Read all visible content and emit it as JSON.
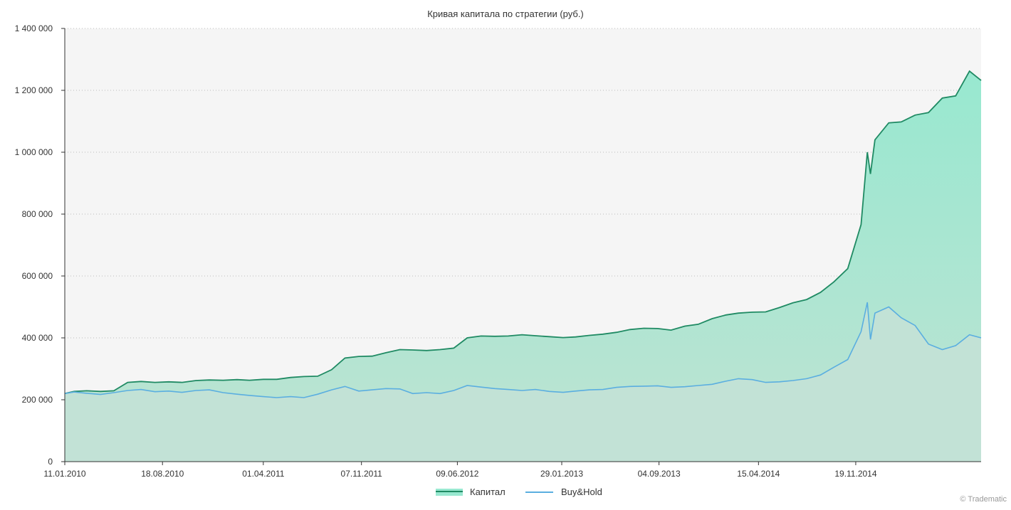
{
  "colors": {
    "plot_background": "#f5f5f5",
    "capital_line": "#1f8a63",
    "capital_fill_top": "#98e8d0",
    "capital_fill_bottom": "#bfe3d3",
    "buyhold_line": "#5aaee0",
    "buyhold_fill": "#c2e2d6",
    "grid": "#bbbbbb",
    "text": "#333333"
  },
  "watermark": "© Tradematic",
  "chart_data": {
    "type": "area",
    "title": "Кривая капитала по стратегии (руб.)",
    "xlabel": "",
    "ylabel": "",
    "x_range": [
      "11.01.2010",
      "27.08.2015"
    ],
    "ylim": [
      0,
      1400000
    ],
    "y_ticks": [
      0,
      200000,
      400000,
      600000,
      800000,
      1000000,
      1200000,
      1400000
    ],
    "y_tick_labels": [
      "0",
      "200 000",
      "400 000",
      "600 000",
      "800 000",
      "1 000 000",
      "1 200 000",
      "1 400 000"
    ],
    "x_ticks": [
      "11.01.2010",
      "18.08.2010",
      "01.04.2011",
      "07.11.2011",
      "09.06.2012",
      "29.01.2013",
      "04.09.2013",
      "15.04.2014",
      "19.11.2014"
    ],
    "grid": "horizontal dotted",
    "legend_position": "bottom-center",
    "series": [
      {
        "name": "Капитал",
        "points": [
          [
            "11.01.2010",
            220000
          ],
          [
            "01.02.2010",
            227000
          ],
          [
            "01.03.2010",
            229000
          ],
          [
            "01.04.2010",
            227000
          ],
          [
            "01.05.2010",
            229000
          ],
          [
            "01.06.2010",
            256000
          ],
          [
            "01.07.2010",
            259000
          ],
          [
            "01.08.2010",
            256000
          ],
          [
            "01.09.2010",
            258000
          ],
          [
            "01.10.2010",
            256000
          ],
          [
            "01.11.2010",
            262000
          ],
          [
            "01.12.2010",
            264000
          ],
          [
            "01.01.2011",
            263000
          ],
          [
            "01.02.2011",
            265000
          ],
          [
            "01.03.2011",
            263000
          ],
          [
            "01.04.2011",
            266000
          ],
          [
            "01.05.2011",
            266000
          ],
          [
            "01.06.2011",
            272000
          ],
          [
            "01.07.2011",
            275000
          ],
          [
            "01.08.2011",
            276000
          ],
          [
            "01.09.2011",
            297000
          ],
          [
            "01.10.2011",
            335000
          ],
          [
            "01.11.2011",
            340000
          ],
          [
            "01.12.2011",
            341000
          ],
          [
            "01.01.2012",
            352000
          ],
          [
            "01.02.2012",
            362000
          ],
          [
            "01.03.2012",
            361000
          ],
          [
            "01.04.2012",
            359000
          ],
          [
            "01.05.2012",
            362000
          ],
          [
            "01.06.2012",
            367000
          ],
          [
            "01.07.2012",
            400000
          ],
          [
            "01.08.2012",
            406000
          ],
          [
            "01.09.2012",
            405000
          ],
          [
            "01.10.2012",
            406000
          ],
          [
            "01.11.2012",
            410000
          ],
          [
            "01.12.2012",
            407000
          ],
          [
            "01.01.2013",
            404000
          ],
          [
            "01.02.2013",
            401000
          ],
          [
            "01.03.2013",
            403000
          ],
          [
            "01.04.2013",
            408000
          ],
          [
            "01.05.2013",
            412000
          ],
          [
            "01.06.2013",
            418000
          ],
          [
            "01.07.2013",
            427000
          ],
          [
            "01.08.2013",
            431000
          ],
          [
            "01.09.2013",
            430000
          ],
          [
            "01.10.2013",
            425000
          ],
          [
            "01.11.2013",
            438000
          ],
          [
            "01.12.2013",
            444000
          ],
          [
            "01.01.2014",
            462000
          ],
          [
            "01.02.2014",
            474000
          ],
          [
            "01.03.2014",
            480000
          ],
          [
            "01.04.2014",
            483000
          ],
          [
            "01.05.2014",
            484000
          ],
          [
            "01.06.2014",
            498000
          ],
          [
            "01.07.2014",
            513000
          ],
          [
            "01.08.2014",
            524000
          ],
          [
            "01.09.2014",
            547000
          ],
          [
            "01.10.2014",
            581000
          ],
          [
            "01.11.2014",
            624000
          ],
          [
            "01.12.2014",
            766000
          ],
          [
            "15.12.2014",
            1000000
          ],
          [
            "22.12.2014",
            930000
          ],
          [
            "01.01.2015",
            1040000
          ],
          [
            "01.02.2015",
            1095000
          ],
          [
            "01.03.2015",
            1098000
          ],
          [
            "01.04.2015",
            1120000
          ],
          [
            "01.05.2015",
            1128000
          ],
          [
            "01.06.2015",
            1175000
          ],
          [
            "01.07.2015",
            1182000
          ],
          [
            "01.08.2015",
            1262000
          ],
          [
            "27.08.2015",
            1232000
          ]
        ]
      },
      {
        "name": "Buy&Hold",
        "points": [
          [
            "11.01.2010",
            220000
          ],
          [
            "01.02.2010",
            225000
          ],
          [
            "01.03.2010",
            221000
          ],
          [
            "01.04.2010",
            217000
          ],
          [
            "01.05.2010",
            223000
          ],
          [
            "01.06.2010",
            230000
          ],
          [
            "01.07.2010",
            233000
          ],
          [
            "01.08.2010",
            226000
          ],
          [
            "01.09.2010",
            228000
          ],
          [
            "01.10.2010",
            224000
          ],
          [
            "01.11.2010",
            230000
          ],
          [
            "01.12.2010",
            232000
          ],
          [
            "01.01.2011",
            223000
          ],
          [
            "01.02.2011",
            218000
          ],
          [
            "01.03.2011",
            214000
          ],
          [
            "01.04.2011",
            210000
          ],
          [
            "01.05.2011",
            207000
          ],
          [
            "01.06.2011",
            210000
          ],
          [
            "01.07.2011",
            207000
          ],
          [
            "01.08.2011",
            218000
          ],
          [
            "01.09.2011",
            232000
          ],
          [
            "01.10.2011",
            243000
          ],
          [
            "01.11.2011",
            228000
          ],
          [
            "01.12.2011",
            232000
          ],
          [
            "01.01.2012",
            236000
          ],
          [
            "01.02.2012",
            235000
          ],
          [
            "01.03.2012",
            220000
          ],
          [
            "01.04.2012",
            223000
          ],
          [
            "01.05.2012",
            220000
          ],
          [
            "01.06.2012",
            230000
          ],
          [
            "01.07.2012",
            246000
          ],
          [
            "01.08.2012",
            241000
          ],
          [
            "01.09.2012",
            236000
          ],
          [
            "01.10.2012",
            233000
          ],
          [
            "01.11.2012",
            230000
          ],
          [
            "01.12.2012",
            233000
          ],
          [
            "01.01.2013",
            227000
          ],
          [
            "01.02.2013",
            224000
          ],
          [
            "01.03.2013",
            228000
          ],
          [
            "01.04.2013",
            232000
          ],
          [
            "01.05.2013",
            233000
          ],
          [
            "01.06.2013",
            240000
          ],
          [
            "01.07.2013",
            243000
          ],
          [
            "01.08.2013",
            244000
          ],
          [
            "01.09.2013",
            245000
          ],
          [
            "01.10.2013",
            240000
          ],
          [
            "01.11.2013",
            242000
          ],
          [
            "01.12.2013",
            246000
          ],
          [
            "01.01.2014",
            250000
          ],
          [
            "01.02.2014",
            260000
          ],
          [
            "01.03.2014",
            268000
          ],
          [
            "01.04.2014",
            265000
          ],
          [
            "01.05.2014",
            256000
          ],
          [
            "01.06.2014",
            258000
          ],
          [
            "01.07.2014",
            262000
          ],
          [
            "01.08.2014",
            268000
          ],
          [
            "01.09.2014",
            280000
          ],
          [
            "01.10.2014",
            305000
          ],
          [
            "01.11.2014",
            330000
          ],
          [
            "01.12.2014",
            420000
          ],
          [
            "15.12.2014",
            515000
          ],
          [
            "22.12.2014",
            395000
          ],
          [
            "01.01.2015",
            480000
          ],
          [
            "01.02.2015",
            500000
          ],
          [
            "01.03.2015",
            465000
          ],
          [
            "01.04.2015",
            440000
          ],
          [
            "01.05.2015",
            380000
          ],
          [
            "01.06.2015",
            362000
          ],
          [
            "01.07.2015",
            375000
          ],
          [
            "01.08.2015",
            410000
          ],
          [
            "27.08.2015",
            400000
          ]
        ]
      }
    ]
  }
}
